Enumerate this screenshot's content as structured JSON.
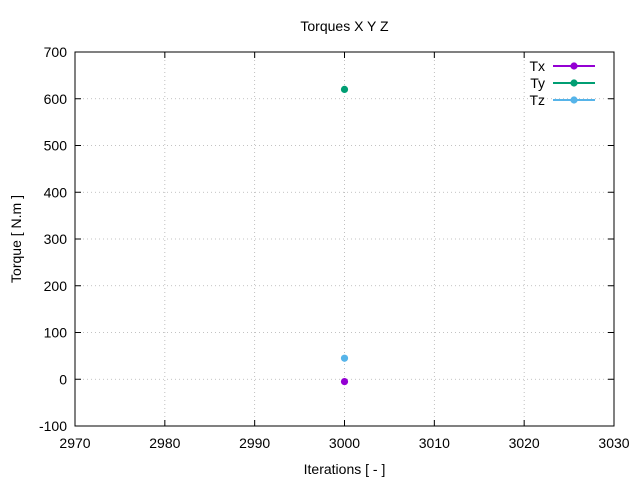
{
  "chart_data": {
    "type": "scatter",
    "title": "Torques X Y Z",
    "xlabel": "Iterations [ - ]",
    "ylabel": "Torque [ N.m ]",
    "xlim": [
      2970,
      3030
    ],
    "ylim": [
      -100,
      700
    ],
    "x_ticks": [
      2970,
      2980,
      2990,
      3000,
      3010,
      3020,
      3030
    ],
    "y_ticks": [
      -100,
      0,
      100,
      200,
      300,
      400,
      500,
      600,
      700
    ],
    "grid": true,
    "legend_position": "top-right",
    "series": [
      {
        "name": "Tx",
        "color": "#9400d3",
        "x": [
          3000
        ],
        "y": [
          -5
        ]
      },
      {
        "name": "Ty",
        "color": "#009e73",
        "x": [
          3000
        ],
        "y": [
          620
        ]
      },
      {
        "name": "Tz",
        "color": "#56b4e9",
        "x": [
          3000
        ],
        "y": [
          45
        ]
      }
    ]
  }
}
